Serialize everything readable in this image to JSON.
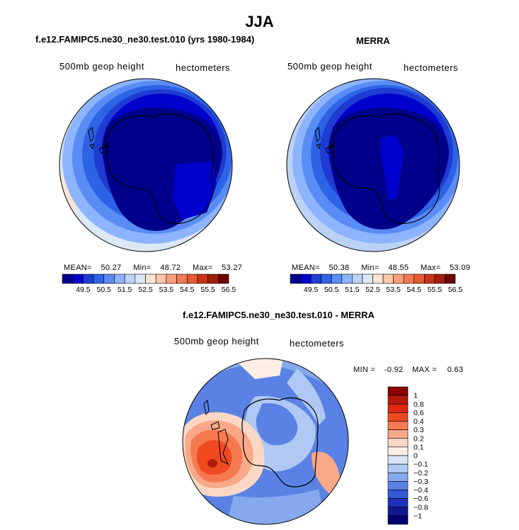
{
  "main_title": "JJA",
  "panels": [
    {
      "title": "f.e12.FAMIPC5.ne30_ne30.test.010 (yrs 1980-1984)",
      "variable": "500mb geop height",
      "units": "hectometers",
      "stats": {
        "mean_label": "MEAN=",
        "mean": "50.27",
        "min_label": "Min=",
        "min": "48.72",
        "max_label": "Max=",
        "max": "53.27"
      },
      "colorbar_labels": [
        "49.5",
        "50.5",
        "51.5",
        "52.5",
        "53.5",
        "54.5",
        "55.5",
        "56.5"
      ]
    },
    {
      "title": "MERRA",
      "variable": "500mb geop height",
      "units": "hectometers",
      "stats": {
        "mean_label": "MEAN=",
        "mean": "50.38",
        "min_label": "Min=",
        "min": "48.55",
        "max_label": "Max=",
        "max": "53.09"
      },
      "colorbar_labels": [
        "49.5",
        "50.5",
        "51.5",
        "52.5",
        "53.5",
        "54.5",
        "55.5",
        "56.5"
      ]
    }
  ],
  "diff_panel": {
    "title": "f.e12.FAMIPC5.ne30_ne30.test.010 - MERRA",
    "variable": "500mb geop height",
    "units": "hectometers",
    "minmax": {
      "min_label": "MIN =",
      "min": "-0.92",
      "max_label": "MAX =",
      "max": "0.63"
    },
    "colorbar_labels": [
      "1",
      "0.8",
      "0.6",
      "0.4",
      "0.3",
      "0.2",
      "0.1",
      "0",
      "−0.1",
      "−0.2",
      "−0.3",
      "−0.4",
      "−0.6",
      "−0.8",
      "−1"
    ]
  },
  "colors": {
    "height_scale": [
      "#00008b",
      "#0000cd",
      "#1e3cd2",
      "#2d64e6",
      "#5a8cf5",
      "#8cb4ff",
      "#bcd2f5",
      "#dce8f5",
      "#fbe4d6",
      "#fcc8a8",
      "#f9a07a",
      "#f27a50",
      "#e55a30",
      "#c83214",
      "#a01e0a",
      "#6e0000"
    ],
    "diff_scale": [
      "#8b0000",
      "#b31a0a",
      "#dc2a10",
      "#f04a20",
      "#f57a50",
      "#f9a888",
      "#fcd8c4",
      "#fdeee4",
      "#d8e6f8",
      "#b0c8f4",
      "#86a8ee",
      "#5a82e4",
      "#3458d8",
      "#1e30b8",
      "#101890",
      "#000070"
    ],
    "coast": "#000000"
  }
}
